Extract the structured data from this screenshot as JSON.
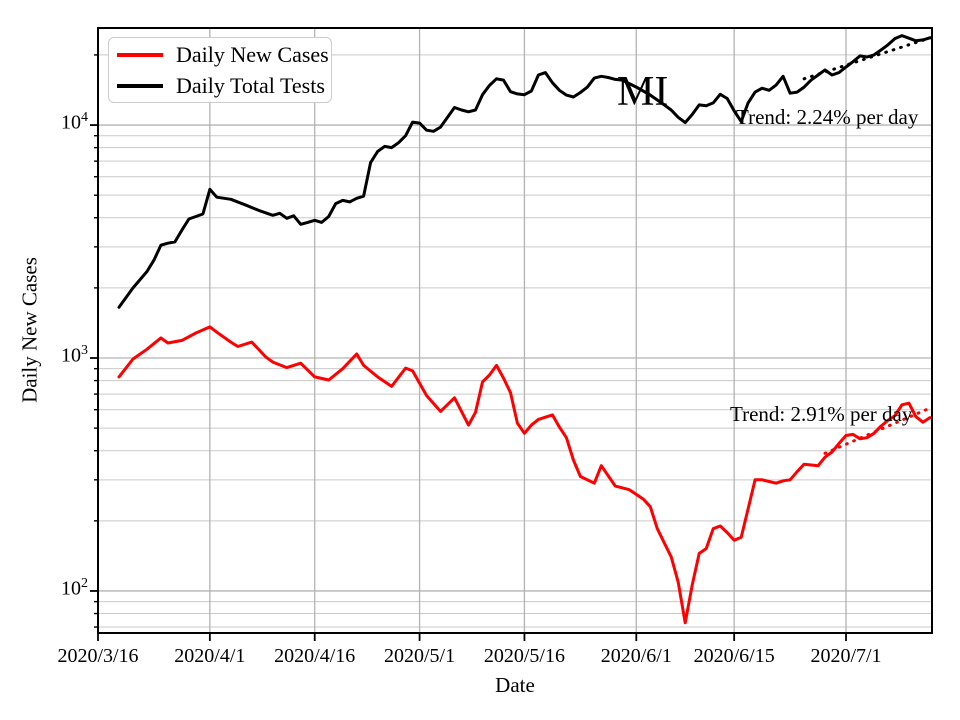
{
  "chart_data": {
    "type": "line",
    "region_label": "MI",
    "xlabel": "Date",
    "ylabel": "Daily New Cases",
    "yscale": "log",
    "ylim": [
      66,
      26100
    ],
    "x_domain_days": [
      0,
      119.3
    ],
    "x_ticks": [
      {
        "day": 0,
        "label": "2020/3/16"
      },
      {
        "day": 16,
        "label": "2020/4/1"
      },
      {
        "day": 31,
        "label": "2020/4/16"
      },
      {
        "day": 46,
        "label": "2020/5/1"
      },
      {
        "day": 61,
        "label": "2020/5/16"
      },
      {
        "day": 77,
        "label": "2020/6/1"
      },
      {
        "day": 91,
        "label": "2020/6/15"
      },
      {
        "day": 107,
        "label": "2020/7/1"
      }
    ],
    "y_major_ticks": [
      {
        "value": 100,
        "label": "10^2"
      },
      {
        "value": 1000,
        "label": "10^3"
      },
      {
        "value": 10000,
        "label": "10^4"
      }
    ],
    "y_minor_ticks": [
      70,
      80,
      90,
      200,
      300,
      400,
      500,
      600,
      700,
      800,
      900,
      2000,
      3000,
      4000,
      5000,
      6000,
      7000,
      8000,
      9000,
      20000
    ],
    "grid": true,
    "legend_position": "upper-left",
    "series": [
      {
        "name": "Daily New Cases",
        "color": "#ff0000",
        "style": "solid",
        "points": [
          [
            3,
            830
          ],
          [
            5,
            990
          ],
          [
            7,
            1090
          ],
          [
            9,
            1220
          ],
          [
            10,
            1160
          ],
          [
            12,
            1190
          ],
          [
            14,
            1280
          ],
          [
            16,
            1360
          ],
          [
            17,
            1290
          ],
          [
            19,
            1170
          ],
          [
            20,
            1120
          ],
          [
            22,
            1170
          ],
          [
            24,
            1010
          ],
          [
            25,
            960
          ],
          [
            27,
            910
          ],
          [
            29,
            950
          ],
          [
            31,
            830
          ],
          [
            33,
            805
          ],
          [
            35,
            900
          ],
          [
            37,
            1040
          ],
          [
            38,
            930
          ],
          [
            40,
            830
          ],
          [
            42,
            755
          ],
          [
            44,
            905
          ],
          [
            45,
            880
          ],
          [
            47,
            690
          ],
          [
            49,
            590
          ],
          [
            51,
            675
          ],
          [
            53,
            515
          ],
          [
            54,
            585
          ],
          [
            55,
            790
          ],
          [
            56,
            845
          ],
          [
            57,
            930
          ],
          [
            58,
            820
          ],
          [
            59,
            710
          ],
          [
            60,
            525
          ],
          [
            61,
            475
          ],
          [
            62,
            515
          ],
          [
            63,
            545
          ],
          [
            65,
            570
          ],
          [
            66,
            505
          ],
          [
            67,
            455
          ],
          [
            68,
            365
          ],
          [
            69,
            310
          ],
          [
            71,
            290
          ],
          [
            72,
            345
          ],
          [
            74,
            282
          ],
          [
            76,
            272
          ],
          [
            78,
            248
          ],
          [
            79,
            230
          ],
          [
            80,
            185
          ],
          [
            82,
            140
          ],
          [
            83,
            109
          ],
          [
            84,
            73
          ],
          [
            85,
            106
          ],
          [
            86,
            145
          ],
          [
            87,
            152
          ],
          [
            88,
            185
          ],
          [
            89,
            190
          ],
          [
            90,
            178
          ],
          [
            91,
            165
          ],
          [
            92,
            170
          ],
          [
            93,
            225
          ],
          [
            94,
            300
          ],
          [
            95,
            300
          ],
          [
            96,
            295
          ],
          [
            97,
            290
          ],
          [
            98,
            297
          ],
          [
            99,
            300
          ],
          [
            100,
            325
          ],
          [
            101,
            350
          ],
          [
            103,
            345
          ],
          [
            104,
            375
          ],
          [
            105,
            395
          ],
          [
            106,
            430
          ],
          [
            107,
            465
          ],
          [
            108,
            470
          ],
          [
            109,
            450
          ],
          [
            110,
            455
          ],
          [
            111,
            475
          ],
          [
            112,
            510
          ],
          [
            113,
            540
          ],
          [
            114,
            565
          ],
          [
            115,
            630
          ],
          [
            116,
            640
          ],
          [
            117,
            560
          ],
          [
            118,
            530
          ],
          [
            119,
            555
          ]
        ]
      },
      {
        "name": "Daily Total Tests",
        "color": "#000000",
        "style": "solid",
        "points": [
          [
            3,
            1650
          ],
          [
            5,
            2000
          ],
          [
            7,
            2350
          ],
          [
            8,
            2630
          ],
          [
            9,
            3050
          ],
          [
            10,
            3110
          ],
          [
            11,
            3150
          ],
          [
            12,
            3540
          ],
          [
            13,
            3950
          ],
          [
            14,
            4050
          ],
          [
            15,
            4150
          ],
          [
            16,
            5300
          ],
          [
            17,
            4900
          ],
          [
            19,
            4800
          ],
          [
            21,
            4550
          ],
          [
            23,
            4300
          ],
          [
            25,
            4100
          ],
          [
            26,
            4180
          ],
          [
            27,
            3980
          ],
          [
            28,
            4080
          ],
          [
            29,
            3750
          ],
          [
            30,
            3820
          ],
          [
            31,
            3900
          ],
          [
            32,
            3820
          ],
          [
            33,
            4050
          ],
          [
            34,
            4600
          ],
          [
            35,
            4750
          ],
          [
            36,
            4680
          ],
          [
            37,
            4850
          ],
          [
            38,
            4950
          ],
          [
            39,
            6900
          ],
          [
            40,
            7700
          ],
          [
            41,
            8100
          ],
          [
            42,
            8000
          ],
          [
            43,
            8400
          ],
          [
            44,
            9000
          ],
          [
            45,
            10300
          ],
          [
            46,
            10200
          ],
          [
            47,
            9500
          ],
          [
            48,
            9400
          ],
          [
            49,
            9800
          ],
          [
            51,
            11900
          ],
          [
            52,
            11600
          ],
          [
            53,
            11400
          ],
          [
            54,
            11600
          ],
          [
            55,
            13500
          ],
          [
            56,
            14800
          ],
          [
            57,
            15800
          ],
          [
            58,
            15600
          ],
          [
            59,
            13900
          ],
          [
            60,
            13600
          ],
          [
            61,
            13500
          ],
          [
            62,
            14000
          ],
          [
            63,
            16400
          ],
          [
            64,
            16800
          ],
          [
            65,
            15200
          ],
          [
            66,
            14100
          ],
          [
            67,
            13450
          ],
          [
            68,
            13200
          ],
          [
            69,
            13800
          ],
          [
            70,
            14550
          ],
          [
            71,
            15900
          ],
          [
            72,
            16200
          ],
          [
            73,
            16000
          ],
          [
            74,
            15700
          ],
          [
            75,
            15600
          ],
          [
            77,
            14550
          ],
          [
            79,
            13450
          ],
          [
            81,
            12200
          ],
          [
            82,
            11600
          ],
          [
            83,
            10800
          ],
          [
            84,
            10250
          ],
          [
            85,
            11100
          ],
          [
            86,
            12200
          ],
          [
            87,
            12100
          ],
          [
            88,
            12450
          ],
          [
            89,
            13550
          ],
          [
            90,
            13000
          ],
          [
            91,
            11500
          ],
          [
            92,
            10350
          ],
          [
            93,
            12450
          ],
          [
            94,
            13850
          ],
          [
            95,
            14400
          ],
          [
            96,
            14100
          ],
          [
            97,
            14850
          ],
          [
            98,
            16200
          ],
          [
            99,
            13700
          ],
          [
            100,
            13850
          ],
          [
            101,
            14550
          ],
          [
            102,
            15600
          ],
          [
            103,
            16400
          ],
          [
            104,
            17250
          ],
          [
            105,
            16400
          ],
          [
            106,
            16800
          ],
          [
            107,
            17750
          ],
          [
            108,
            18700
          ],
          [
            109,
            19800
          ],
          [
            110,
            19600
          ],
          [
            111,
            20000
          ],
          [
            112,
            21000
          ],
          [
            113,
            22100
          ],
          [
            114,
            23500
          ],
          [
            115,
            24200
          ],
          [
            116,
            23600
          ],
          [
            117,
            23000
          ],
          [
            118,
            23200
          ],
          [
            119,
            23700
          ]
        ]
      },
      {
        "name": "Daily Total Tests trend",
        "color": "#000000",
        "style": "dotted",
        "points": [
          [
            101,
            15800
          ],
          [
            119.3,
            23800
          ]
        ]
      },
      {
        "name": "Daily New Cases trend",
        "color": "#ff0000",
        "style": "dotted",
        "points": [
          [
            104,
            390
          ],
          [
            119.3,
            615
          ]
        ]
      }
    ]
  },
  "legend": {
    "items": [
      {
        "label": "Daily New Cases",
        "color": "#ff0000"
      },
      {
        "label": "Daily Total Tests",
        "color": "#000000"
      }
    ]
  },
  "annotations": {
    "region_label": "MI",
    "tests_trend_label": "Trend: 2.24% per day",
    "cases_trend_label": "Trend: 2.91% per day"
  },
  "axes": {
    "xlabel": "Date",
    "ylabel": "Daily New Cases"
  }
}
